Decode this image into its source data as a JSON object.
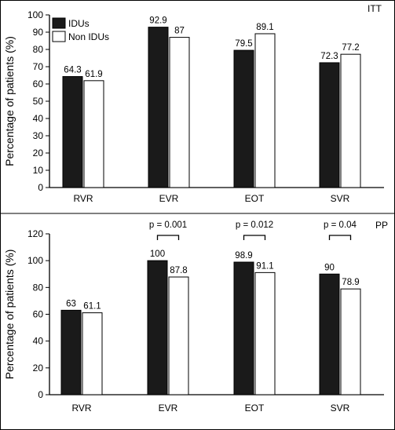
{
  "chart_data": [
    {
      "type": "bar",
      "tag": "ITT",
      "categories": [
        "RVR",
        "EVR",
        "EOT",
        "SVR"
      ],
      "series": [
        {
          "name": "IDUs",
          "values": [
            64.3,
            92.9,
            79.5,
            72.3
          ],
          "color": "#1a1a1a",
          "labels": [
            "64.3",
            "92.9",
            "79.5",
            "72.3"
          ]
        },
        {
          "name": "Non IDUs",
          "values": [
            61.9,
            87,
            89.1,
            77.2
          ],
          "color": "#ffffff",
          "labels": [
            "61.9",
            "87",
            "89.1",
            "77.2"
          ]
        }
      ],
      "ylabel": "Percentage of patients (%)",
      "ylim": [
        0,
        100
      ],
      "yticks": [
        "0",
        "10",
        "20",
        "30",
        "40",
        "50",
        "60",
        "70",
        "80",
        "90",
        "100"
      ],
      "legend": "top-left",
      "grid": false
    },
    {
      "type": "bar",
      "tag": "PP",
      "categories": [
        "RVR",
        "EVR",
        "EOT",
        "SVR"
      ],
      "series": [
        {
          "name": "IDUs",
          "values": [
            63,
            100,
            98.9,
            90
          ],
          "color": "#1a1a1a",
          "labels": [
            "63",
            "100",
            "98.9",
            "90"
          ]
        },
        {
          "name": "Non IDUs",
          "values": [
            61.1,
            87.8,
            91.1,
            78.9
          ],
          "color": "#ffffff",
          "labels": [
            "61.1",
            "87.8",
            "91.1",
            "78.9"
          ]
        }
      ],
      "ylabel": "Percentage of patients (%)",
      "ylim": [
        0,
        120
      ],
      "yticks": [
        "0",
        "20",
        "40",
        "60",
        "80",
        "100",
        "120"
      ],
      "annotations": [
        {
          "category_index": 1,
          "text": "p = 0.001"
        },
        {
          "category_index": 2,
          "text": "p = 0.012"
        },
        {
          "category_index": 3,
          "text": "p = 0.04"
        }
      ],
      "grid": false
    }
  ]
}
